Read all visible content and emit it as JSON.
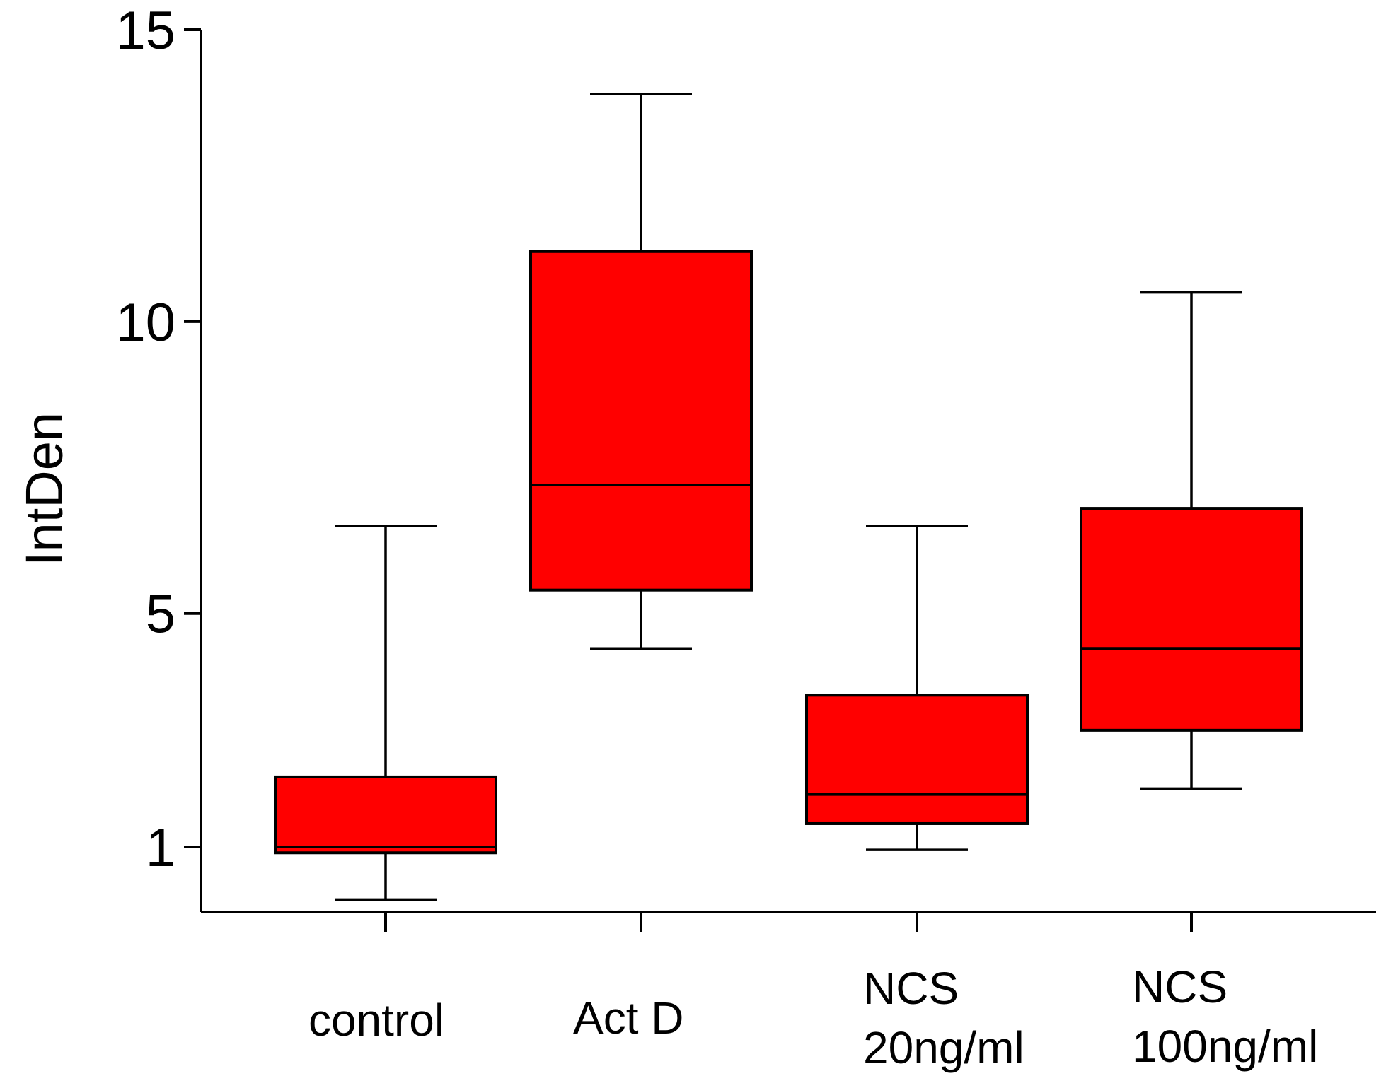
{
  "chart_data": {
    "type": "boxplot",
    "ylabel": "IntDen",
    "xlabel": "",
    "ylim": [
      -0.2,
      15
    ],
    "yticks": [
      1,
      5,
      10,
      15
    ],
    "grid": false,
    "box_color": "#ff0000",
    "line_color": "#000000",
    "series": [
      {
        "name": "control",
        "label_lines": [
          "control"
        ],
        "whisker_low": 0.1,
        "q1": 0.9,
        "median": 1.0,
        "q3": 2.2,
        "whisker_high": 6.5
      },
      {
        "name": "Act D",
        "label_lines": [
          "Act D"
        ],
        "whisker_low": 4.4,
        "q1": 5.4,
        "median": 7.2,
        "q3": 11.2,
        "whisker_high": 13.9
      },
      {
        "name": "NCS 20ng/ml",
        "label_lines": [
          "NCS",
          "20ng/ml"
        ],
        "whisker_low": 0.95,
        "q1": 1.4,
        "median": 1.9,
        "q3": 3.6,
        "whisker_high": 6.5
      },
      {
        "name": "NCS 100ng/ml",
        "label_lines": [
          "NCS",
          "100ng/ml"
        ],
        "whisker_low": 2.0,
        "q1": 3.0,
        "median": 4.4,
        "q3": 6.8,
        "whisker_high": 10.5
      }
    ]
  }
}
